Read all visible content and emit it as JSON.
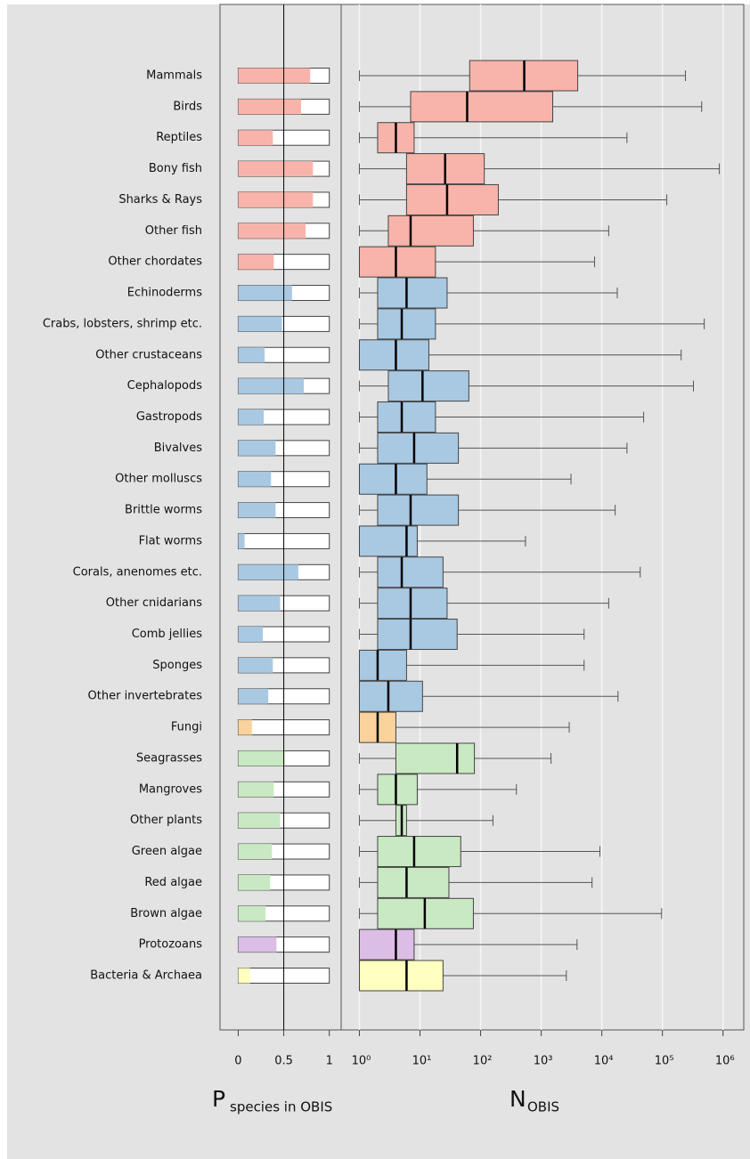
{
  "chart_data": [
    {
      "type": "bar",
      "xlabel": "P",
      "xlabel_sub": "species in OBIS",
      "categories": [
        "Mammals",
        "Birds",
        "Reptiles",
        "Bony fish",
        "Sharks & Rays",
        "Other fish",
        "Other chordates",
        "Echinoderms",
        "Crabs, lobsters, shrimp etc.",
        "Other crustaceans",
        "Cephalopods",
        "Gastropods",
        "Bivalves",
        "Other molluscs",
        "Brittle worms",
        "Flat worms",
        "Corals, anenomes etc.",
        "Other cnidarians",
        "Comb jellies",
        "Sponges",
        "Other invertebrates",
        "Fungi",
        "Seagrasses",
        "Mangroves",
        "Other plants",
        "Green algae",
        "Red algae",
        "Brown algae",
        "Protozoans",
        "Bacteria & Archaea"
      ],
      "values": [
        0.79,
        0.69,
        0.38,
        0.82,
        0.82,
        0.74,
        0.39,
        0.59,
        0.48,
        0.29,
        0.72,
        0.28,
        0.41,
        0.36,
        0.41,
        0.07,
        0.66,
        0.46,
        0.27,
        0.38,
        0.33,
        0.15,
        0.51,
        0.39,
        0.46,
        0.37,
        0.35,
        0.3,
        0.42,
        0.13
      ],
      "colors": [
        "#f8b4aa",
        "#f8b4aa",
        "#f8b4aa",
        "#f8b4aa",
        "#f8b4aa",
        "#f8b4aa",
        "#f8b4aa",
        "#a9c8e2",
        "#a9c8e2",
        "#a9c8e2",
        "#a9c8e2",
        "#a9c8e2",
        "#a9c8e2",
        "#a9c8e2",
        "#a9c8e2",
        "#a9c8e2",
        "#a9c8e2",
        "#a9c8e2",
        "#a9c8e2",
        "#a9c8e2",
        "#a9c8e2",
        "#f9d29c",
        "#c8e9c2",
        "#c8e9c2",
        "#c8e9c2",
        "#c8e9c2",
        "#c8e9c2",
        "#c8e9c2",
        "#dcbde6",
        "#ffffc0"
      ],
      "xlim": [
        -0.2,
        1.13
      ],
      "xticks": [
        0,
        0.5,
        1
      ]
    },
    {
      "type": "box",
      "log_x": true,
      "grid": true,
      "xlabel": "N",
      "xlabel_sub": "OBIS",
      "boxes": [
        {
          "min": 1,
          "q1": 66,
          "median": 525,
          "q3": 4000,
          "max": 240000
        },
        {
          "min": 1,
          "q1": 7,
          "median": 60,
          "q3": 1550,
          "max": 445000
        },
        {
          "min": 1,
          "q1": 2,
          "median": 4,
          "q3": 8,
          "max": 26000
        },
        {
          "min": 1,
          "q1": 6,
          "median": 26,
          "q3": 115,
          "max": 870000
        },
        {
          "min": 1,
          "q1": 6,
          "median": 28,
          "q3": 196,
          "max": 118000
        },
        {
          "min": 1,
          "q1": 3,
          "median": 7,
          "q3": 76,
          "max": 13000
        },
        {
          "min": 1,
          "q1": 1,
          "median": 4,
          "q3": 18,
          "max": 7600
        },
        {
          "min": 1,
          "q1": 2,
          "median": 6,
          "q3": 28,
          "max": 18000
        },
        {
          "min": 1,
          "q1": 2,
          "median": 5,
          "q3": 18,
          "max": 490000
        },
        {
          "min": 1,
          "q1": 1,
          "median": 4,
          "q3": 14,
          "max": 204000
        },
        {
          "min": 1,
          "q1": 3,
          "median": 11,
          "q3": 64,
          "max": 325000
        },
        {
          "min": 1,
          "q1": 2,
          "median": 5,
          "q3": 18,
          "max": 49000
        },
        {
          "min": 1,
          "q1": 2,
          "median": 8,
          "q3": 43,
          "max": 26000
        },
        {
          "min": 1,
          "q1": 1,
          "median": 4,
          "q3": 13,
          "max": 3100
        },
        {
          "min": 1,
          "q1": 2,
          "median": 7,
          "q3": 43,
          "max": 16600
        },
        {
          "min": 1,
          "q1": 1,
          "median": 6,
          "q3": 9,
          "max": 550
        },
        {
          "min": 1,
          "q1": 2,
          "median": 5,
          "q3": 24,
          "max": 43000
        },
        {
          "min": 1,
          "q1": 2,
          "median": 7,
          "q3": 28,
          "max": 13000
        },
        {
          "min": 1,
          "q1": 2,
          "median": 7,
          "q3": 41,
          "max": 5100
        },
        {
          "min": 1,
          "q1": 1,
          "median": 2,
          "q3": 6,
          "max": 5100
        },
        {
          "min": 1,
          "q1": 1,
          "median": 3,
          "q3": 11,
          "max": 18500
        },
        {
          "min": 1,
          "q1": 1,
          "median": 2,
          "q3": 4,
          "max": 2900
        },
        {
          "min": 1,
          "q1": 4,
          "median": 41,
          "q3": 79,
          "max": 1450
        },
        {
          "min": 1,
          "q1": 2,
          "median": 4,
          "q3": 9,
          "max": 390
        },
        {
          "min": 1,
          "q1": 4,
          "median": 5,
          "q3": 6,
          "max": 160
        },
        {
          "min": 1,
          "q1": 2,
          "median": 8,
          "q3": 47,
          "max": 9300
        },
        {
          "min": 1,
          "q1": 2,
          "median": 6,
          "q3": 30,
          "max": 6900
        },
        {
          "min": 1,
          "q1": 2,
          "median": 12,
          "q3": 76,
          "max": 97000
        },
        {
          "min": 1,
          "q1": 1,
          "median": 4,
          "q3": 8,
          "max": 3900
        },
        {
          "min": 1,
          "q1": 1,
          "median": 6,
          "q3": 24,
          "max": 2600
        }
      ],
      "xlim": [
        0.5,
        2200000
      ],
      "xticks": [
        {
          "value": 1,
          "label": "10⁰"
        },
        {
          "value": 10,
          "label": "10¹"
        },
        {
          "value": 100,
          "label": "10²"
        },
        {
          "value": 1000,
          "label": "10³"
        },
        {
          "value": 10000,
          "label": "10⁴"
        },
        {
          "value": 100000,
          "label": "10⁵"
        },
        {
          "value": 1000000,
          "label": "10⁶"
        }
      ]
    }
  ]
}
